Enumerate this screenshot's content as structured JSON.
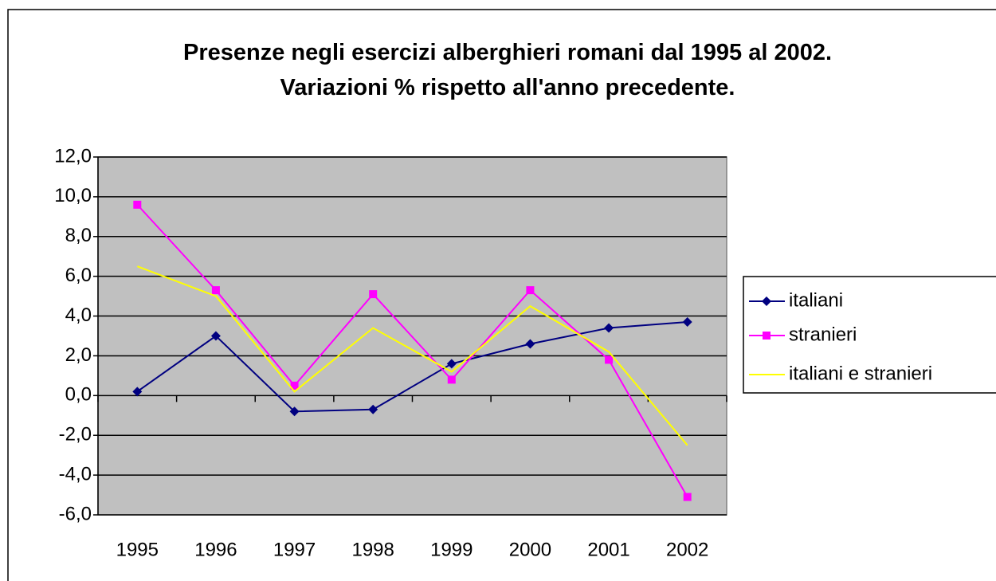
{
  "chart_data": {
    "type": "line",
    "title": "Presenze negli esercizi alberghieri romani dal 1995 al 2002.  Variazioni % rispetto all'anno precedente.",
    "categories": [
      "1995",
      "1996",
      "1997",
      "1998",
      "1999",
      "2000",
      "2001",
      "2002"
    ],
    "series": [
      {
        "name": "italiani",
        "color": "#000080",
        "marker": "diamond",
        "values": [
          0.2,
          3.0,
          -0.8,
          -0.7,
          1.6,
          2.6,
          3.4,
          3.7
        ]
      },
      {
        "name": "stranieri",
        "color": "#ff00ff",
        "marker": "square",
        "values": [
          9.6,
          5.3,
          0.5,
          5.1,
          0.8,
          5.3,
          1.8,
          -5.1
        ]
      },
      {
        "name": "italiani e stranieri",
        "color": "#ffff00",
        "values": [
          6.5,
          5.0,
          0.2,
          3.4,
          1.2,
          4.5,
          2.2,
          -2.5
        ]
      }
    ],
    "ylim": [
      -6,
      12
    ],
    "yticks": [
      {
        "value": -6,
        "label": "-6,0"
      },
      {
        "value": -4,
        "label": "-4,0"
      },
      {
        "value": -2,
        "label": "-2,0"
      },
      {
        "value": 0,
        "label": "0,0"
      },
      {
        "value": 2,
        "label": "2,0"
      },
      {
        "value": 4,
        "label": "4,0"
      },
      {
        "value": 6,
        "label": "6,0"
      },
      {
        "value": 8,
        "label": "8,0"
      },
      {
        "value": 10,
        "label": "10,0"
      },
      {
        "value": 12,
        "label": "12,0"
      }
    ],
    "grid": true,
    "plot_background": "#c0c0c0",
    "legend": "right"
  }
}
